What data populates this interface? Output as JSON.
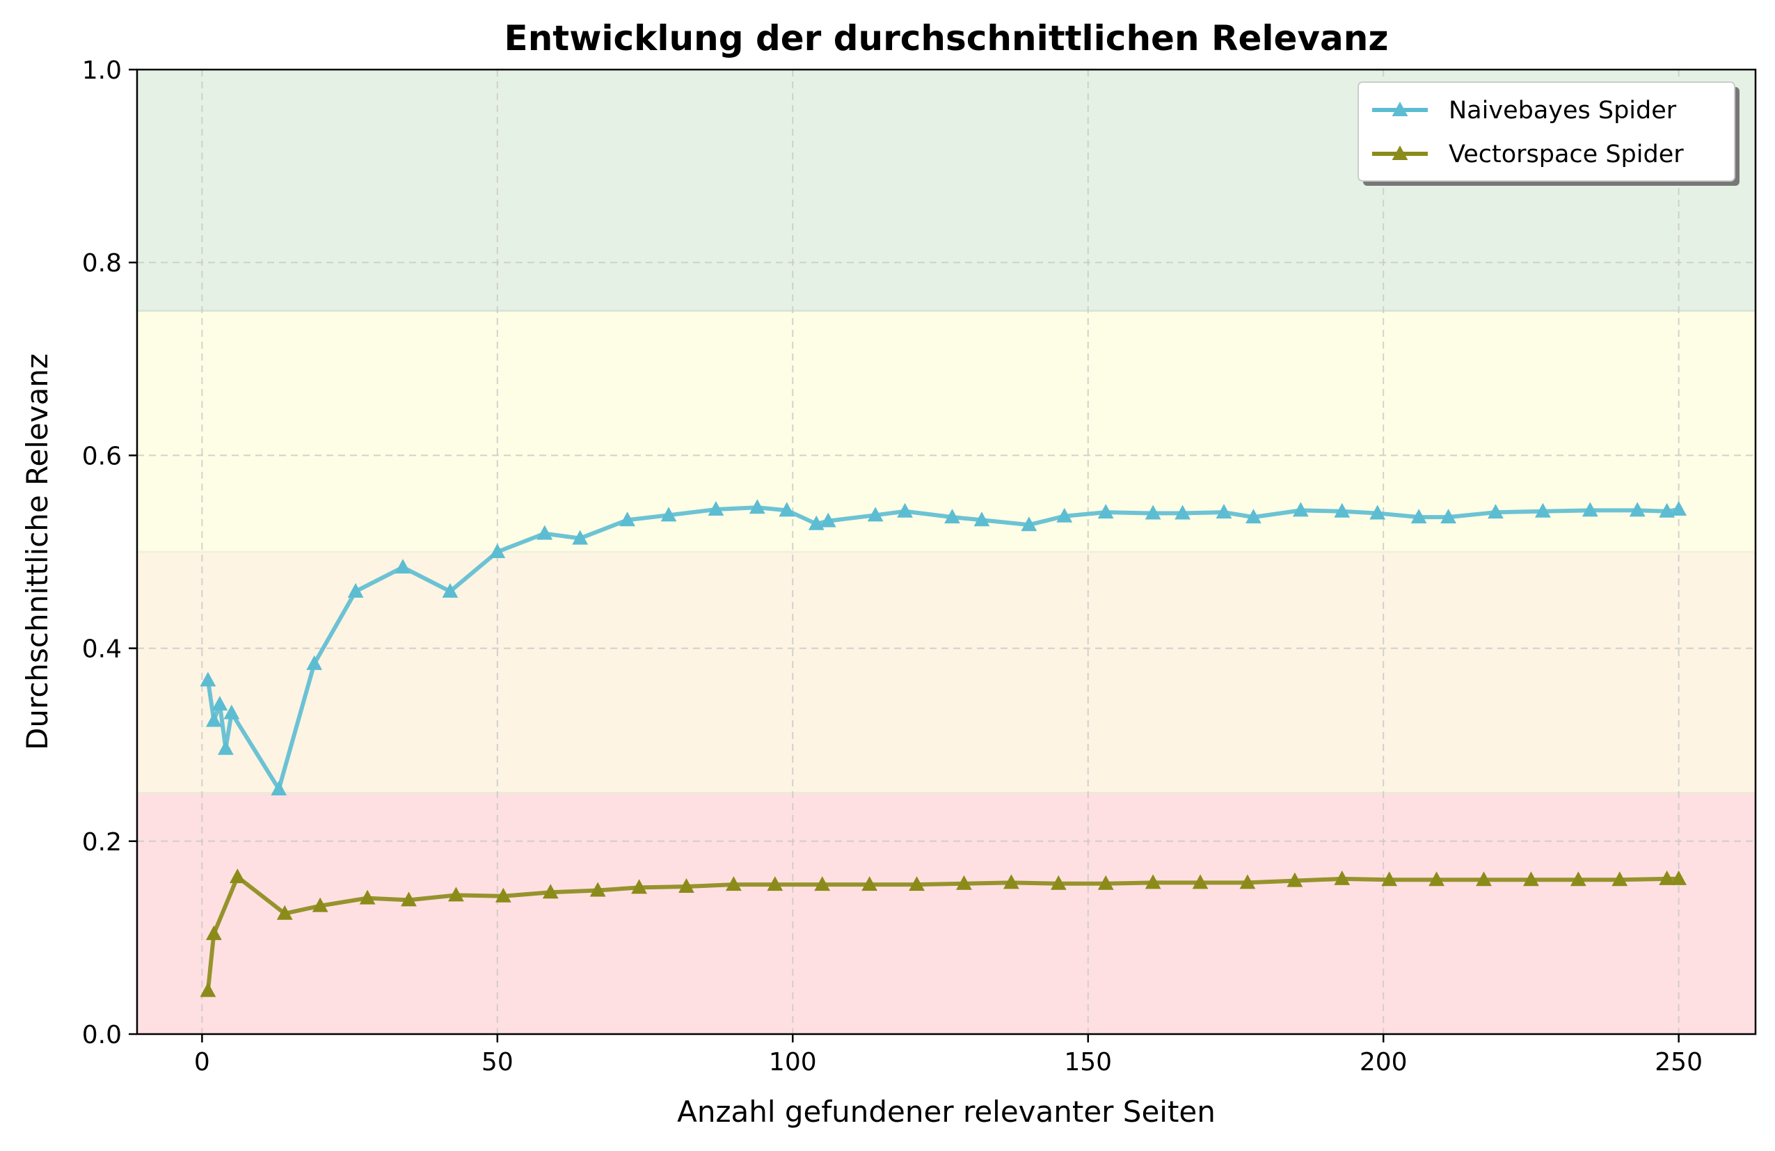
{
  "chart_data": {
    "type": "line",
    "title": "Entwicklung der durchschnittlichen Relevanz",
    "xlabel": "Anzahl gefundener relevanter Seiten",
    "ylabel": "Durchschnittliche Relevanz",
    "xlim": [
      -11,
      263
    ],
    "ylim": [
      0.0,
      1.0
    ],
    "xticks": [
      0,
      50,
      100,
      150,
      200,
      250
    ],
    "yticks": [
      0.0,
      0.2,
      0.4,
      0.6,
      0.8,
      1.0
    ],
    "xtick_labels": [
      "0",
      "50",
      "100",
      "150",
      "200",
      "250"
    ],
    "ytick_labels": [
      "0.0",
      "0.2",
      "0.4",
      "0.6",
      "0.8",
      "1.0"
    ],
    "grid": true,
    "legend_position": "top-right",
    "background_bands": [
      {
        "from": 0.0,
        "to": 0.25,
        "color": "#ffe0e2"
      },
      {
        "from": 0.25,
        "to": 0.5,
        "color": "#fdf4e3"
      },
      {
        "from": 0.5,
        "to": 0.75,
        "color": "#fefee6"
      },
      {
        "from": 0.75,
        "to": 1.0,
        "color": "#e6f1e5"
      }
    ],
    "series": [
      {
        "name": "Naivebayes Spider",
        "color": "#5cbcd2",
        "marker": "triangle",
        "x": [
          1,
          2,
          3,
          4,
          5,
          13,
          19,
          26,
          34,
          42,
          50,
          58,
          64,
          72,
          79,
          87,
          94,
          99,
          104,
          106,
          114,
          119,
          127,
          132,
          140,
          146,
          153,
          161,
          166,
          173,
          178,
          186,
          193,
          199,
          206,
          211,
          219,
          227,
          235,
          243,
          248,
          250
        ],
        "y": [
          0.367,
          0.325,
          0.342,
          0.296,
          0.333,
          0.254,
          0.384,
          0.459,
          0.484,
          0.459,
          0.5,
          0.519,
          0.514,
          0.533,
          0.538,
          0.544,
          0.546,
          0.543,
          0.529,
          0.532,
          0.538,
          0.542,
          0.536,
          0.533,
          0.528,
          0.537,
          0.541,
          0.54,
          0.54,
          0.541,
          0.536,
          0.543,
          0.542,
          0.54,
          0.536,
          0.536,
          0.541,
          0.542,
          0.543,
          0.543,
          0.542,
          0.544
        ]
      },
      {
        "name": "Vectorspace Spider",
        "color": "#8b8b1a",
        "marker": "triangle",
        "x": [
          1,
          2,
          6,
          14,
          20,
          28,
          35,
          43,
          51,
          59,
          67,
          74,
          82,
          90,
          97,
          105,
          113,
          121,
          129,
          137,
          145,
          153,
          161,
          169,
          177,
          185,
          193,
          201,
          209,
          217,
          225,
          233,
          240,
          248,
          250
        ],
        "y": [
          0.045,
          0.104,
          0.163,
          0.125,
          0.133,
          0.141,
          0.139,
          0.144,
          0.143,
          0.147,
          0.149,
          0.152,
          0.153,
          0.155,
          0.155,
          0.155,
          0.155,
          0.155,
          0.156,
          0.157,
          0.156,
          0.156,
          0.157,
          0.157,
          0.157,
          0.159,
          0.161,
          0.16,
          0.16,
          0.16,
          0.16,
          0.16,
          0.16,
          0.161,
          0.161
        ]
      }
    ]
  }
}
